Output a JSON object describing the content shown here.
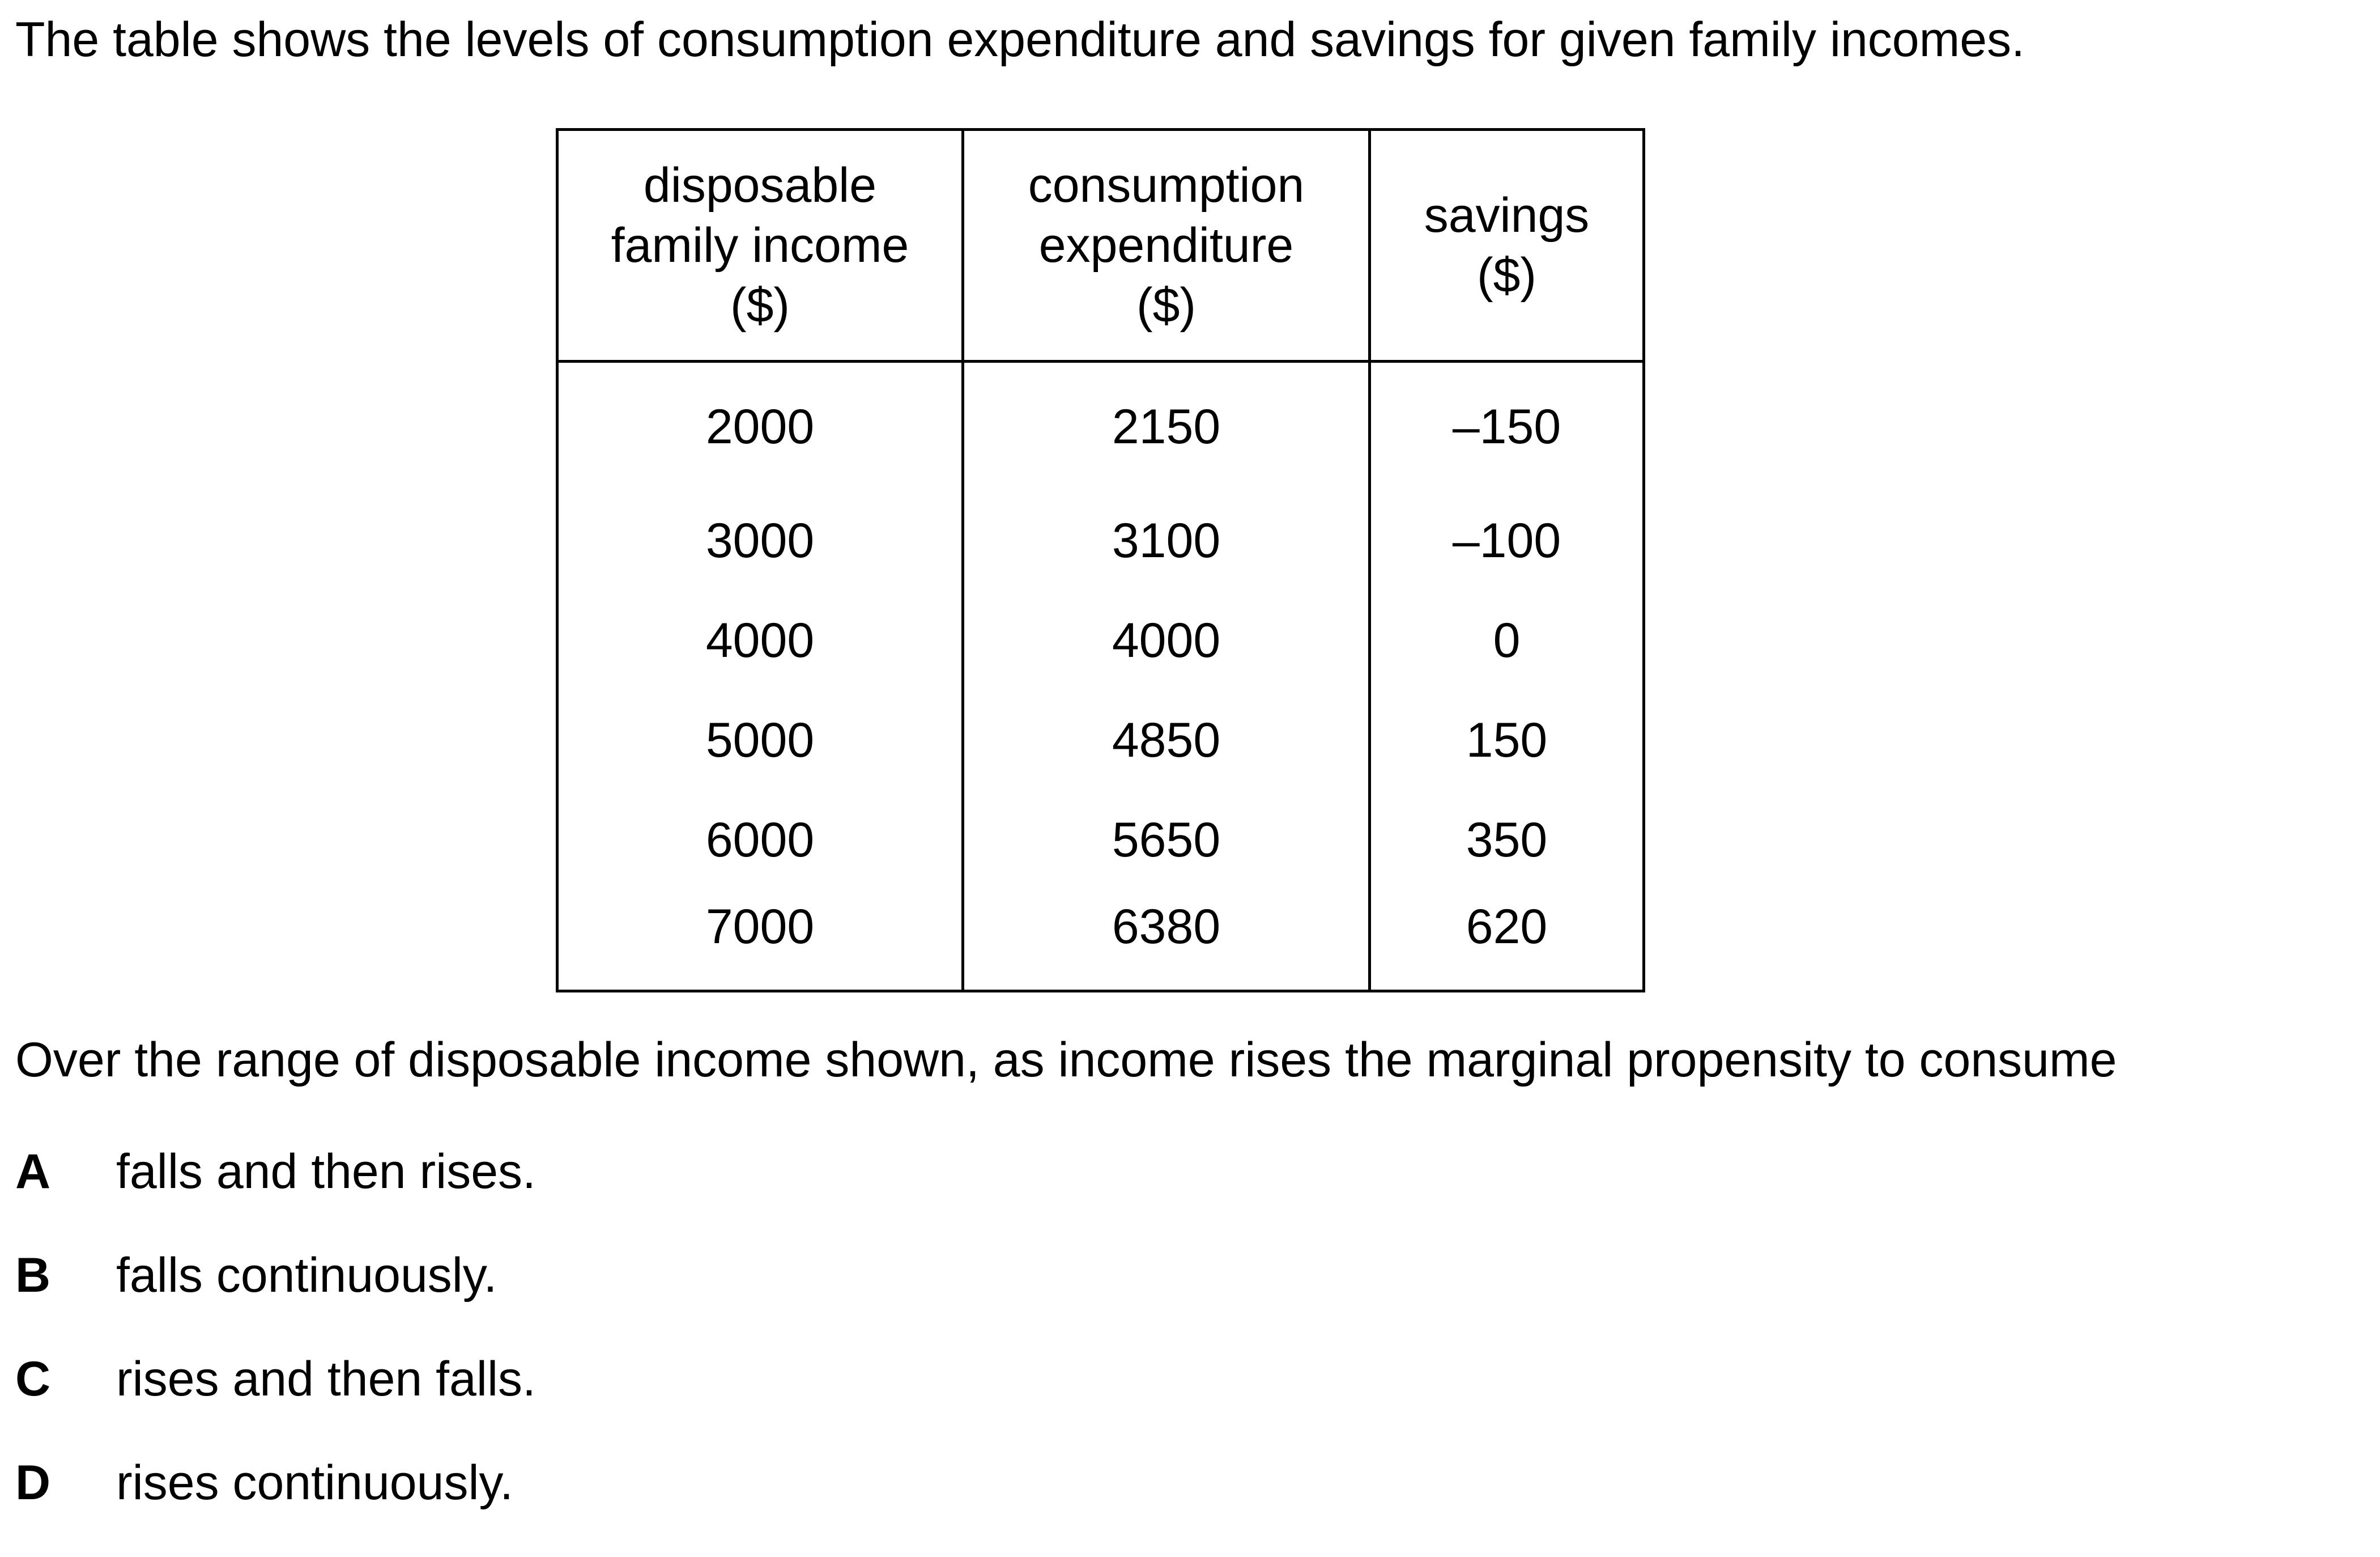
{
  "intro": "The table shows the levels of consumption expenditure and savings for given family incomes.",
  "table": {
    "headers": [
      {
        "lines": [
          "disposable",
          "family income",
          "($)"
        ]
      },
      {
        "lines": [
          "consumption",
          "expenditure",
          "($)"
        ]
      },
      {
        "lines": [
          "savings",
          "($)"
        ]
      }
    ],
    "rows": [
      [
        "2000",
        "2150",
        "–150"
      ],
      [
        "3000",
        "3100",
        "–100"
      ],
      [
        "4000",
        "4000",
        "0"
      ],
      [
        "5000",
        "4850",
        "150"
      ],
      [
        "6000",
        "5650",
        "350"
      ],
      [
        "7000",
        "6380",
        "620"
      ]
    ]
  },
  "question": "Over the range of disposable income shown, as income rises the marginal propensity to consume",
  "options": [
    {
      "letter": "A",
      "text": "falls and then rises."
    },
    {
      "letter": "B",
      "text": "falls continuously."
    },
    {
      "letter": "C",
      "text": "rises and then falls."
    },
    {
      "letter": "D",
      "text": "rises continuously."
    }
  ]
}
